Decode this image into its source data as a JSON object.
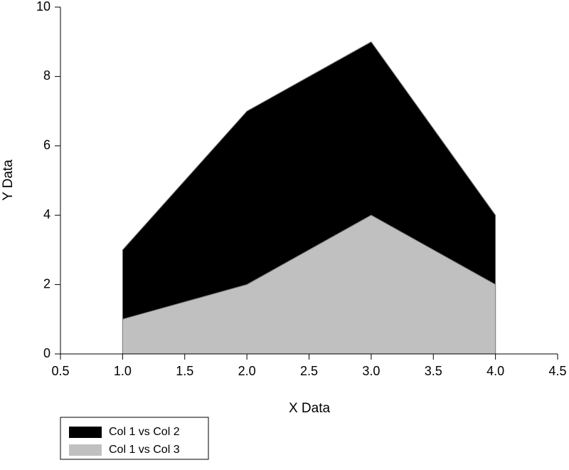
{
  "chart_data": {
    "type": "area",
    "x": [
      1,
      2,
      3,
      4
    ],
    "series": [
      {
        "name": "Col 1 vs Col 2",
        "color": "#000000",
        "values": [
          3,
          7,
          9,
          4
        ]
      },
      {
        "name": "Col 1 vs Col 3",
        "color": "#c0c0c0",
        "values": [
          1,
          2,
          4,
          2
        ]
      }
    ],
    "xlabel": "X Data",
    "ylabel": "Y Data",
    "xlim": [
      0.5,
      4.5
    ],
    "xticks": [
      0.5,
      {
        "value": 1,
        "label": "1.0"
      },
      1.5,
      {
        "value": 2,
        "label": "2.0"
      },
      2.5,
      {
        "value": 3,
        "label": "3.0"
      },
      3.5,
      {
        "value": 4,
        "label": "4.0"
      },
      4.5
    ],
    "ylim": [
      0,
      10
    ],
    "yticks": [
      0,
      2,
      4,
      6,
      8,
      10
    ],
    "grid": false,
    "legend": "bottom-left"
  }
}
